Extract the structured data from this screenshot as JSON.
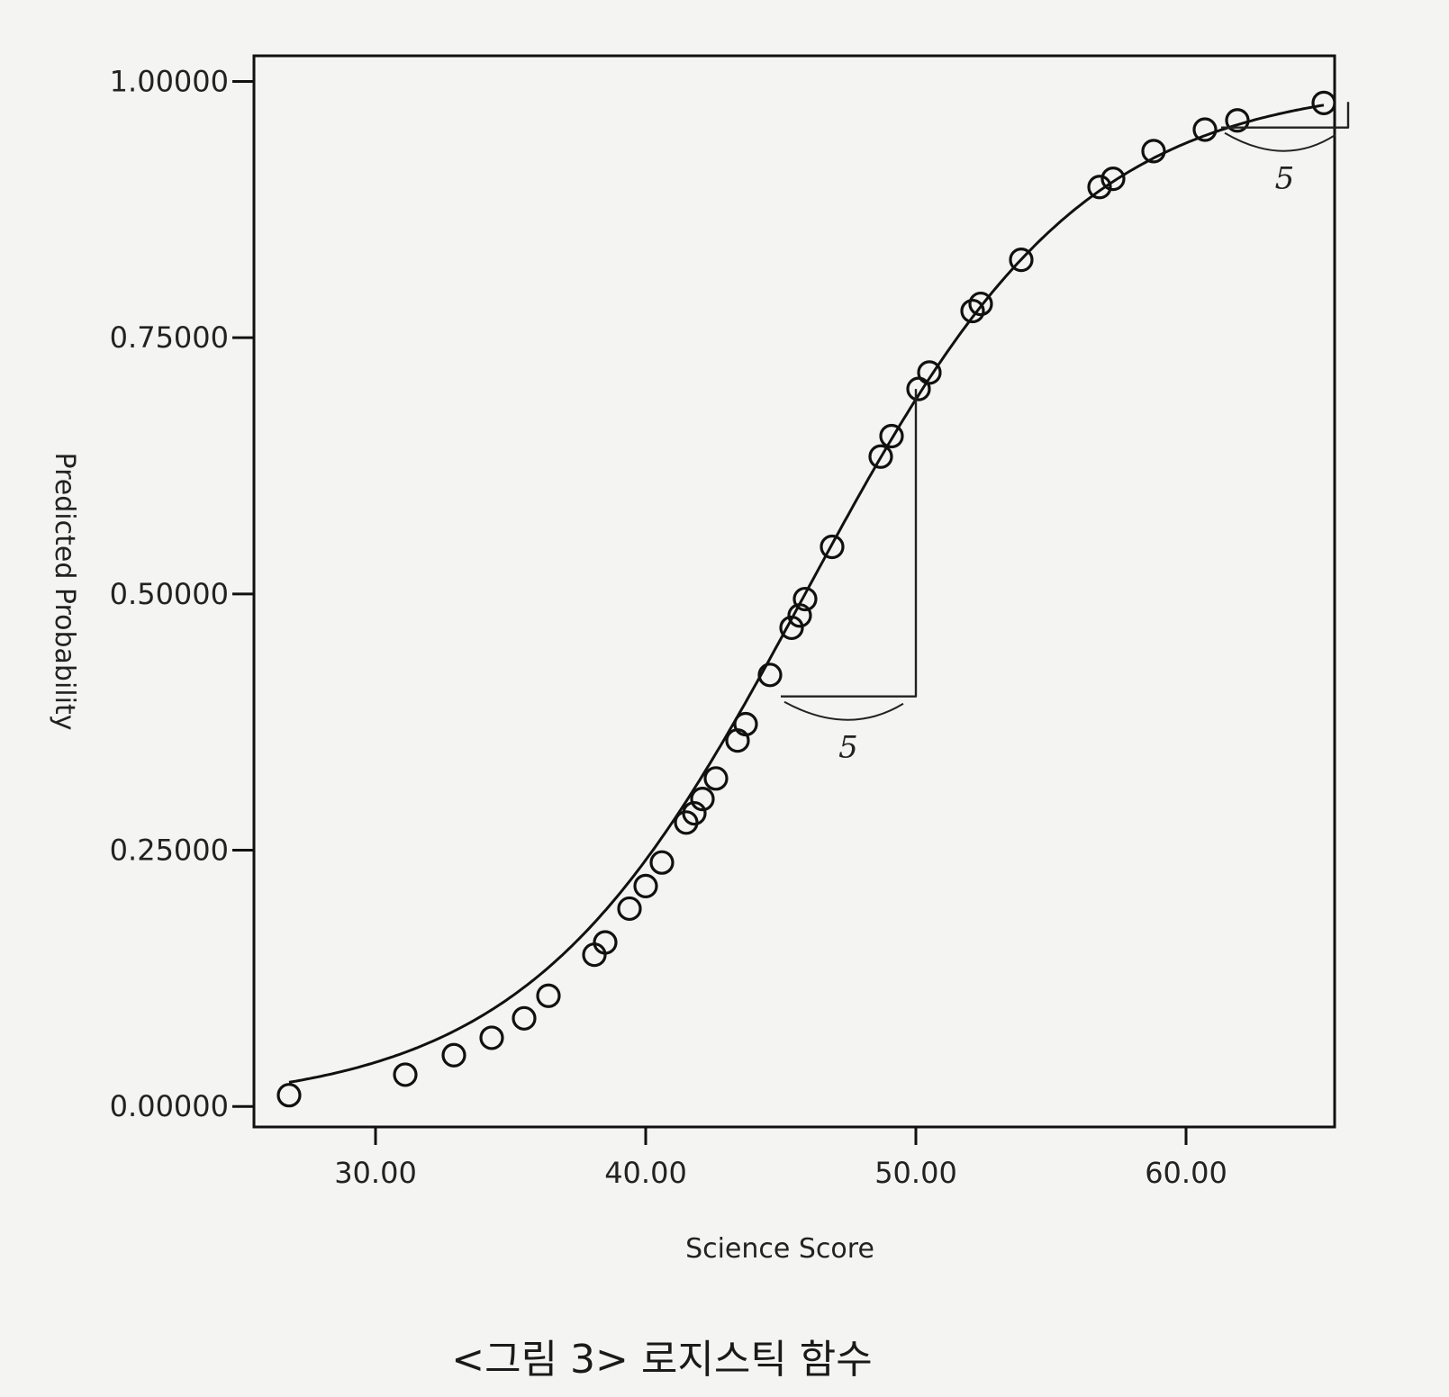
{
  "chart_data": {
    "type": "scatter",
    "xlabel": "Science Score",
    "ylabel": "Predicted Probability",
    "xlim": [
      25.5,
      65.5
    ],
    "ylim": [
      -0.02,
      1.025
    ],
    "x_ticks": [
      30,
      40,
      50,
      60
    ],
    "x_tick_labels": [
      "30.00",
      "40.00",
      "50.00",
      "60.00"
    ],
    "y_ticks": [
      0,
      0.25,
      0.5,
      0.75,
      1.0
    ],
    "y_tick_labels": [
      "0.00000",
      "0.25000",
      "0.50000",
      "0.75000",
      "1.00000"
    ],
    "grid": false,
    "curve": {
      "kind": "logistic",
      "midpoint": 45.9,
      "slope": 0.195
    },
    "series": [
      {
        "marker": "open-circle",
        "points": [
          {
            "x": 26.8,
            "y": 0.011
          },
          {
            "x": 31.1,
            "y": 0.031
          },
          {
            "x": 32.9,
            "y": 0.05
          },
          {
            "x": 34.3,
            "y": 0.067
          },
          {
            "x": 35.5,
            "y": 0.086
          },
          {
            "x": 36.4,
            "y": 0.108
          },
          {
            "x": 38.1,
            "y": 0.148
          },
          {
            "x": 38.5,
            "y": 0.16
          },
          {
            "x": 39.4,
            "y": 0.193
          },
          {
            "x": 40.0,
            "y": 0.215
          },
          {
            "x": 40.6,
            "y": 0.238
          },
          {
            "x": 41.5,
            "y": 0.277
          },
          {
            "x": 41.8,
            "y": 0.286
          },
          {
            "x": 42.1,
            "y": 0.3
          },
          {
            "x": 42.6,
            "y": 0.32
          },
          {
            "x": 43.4,
            "y": 0.357
          },
          {
            "x": 43.7,
            "y": 0.373
          },
          {
            "x": 44.6,
            "y": 0.421
          },
          {
            "x": 45.4,
            "y": 0.467
          },
          {
            "x": 45.7,
            "y": 0.479
          },
          {
            "x": 45.9,
            "y": 0.495
          },
          {
            "x": 46.9,
            "y": 0.546
          },
          {
            "x": 48.7,
            "y": 0.634
          },
          {
            "x": 49.1,
            "y": 0.654
          },
          {
            "x": 50.1,
            "y": 0.7
          },
          {
            "x": 50.5,
            "y": 0.716
          },
          {
            "x": 52.1,
            "y": 0.776
          },
          {
            "x": 52.4,
            "y": 0.783
          },
          {
            "x": 53.9,
            "y": 0.826
          },
          {
            "x": 56.8,
            "y": 0.897
          },
          {
            "x": 57.3,
            "y": 0.905
          },
          {
            "x": 58.8,
            "y": 0.932
          },
          {
            "x": 60.7,
            "y": 0.953
          },
          {
            "x": 61.9,
            "y": 0.962
          },
          {
            "x": 65.1,
            "y": 0.979
          }
        ]
      }
    ],
    "annotations": [
      {
        "type": "handwritten-triangle",
        "x_from": 45,
        "x_to": 50,
        "y_from": 0.4,
        "y_to": 0.7,
        "label": "5"
      },
      {
        "type": "handwritten-triangle",
        "x_from": 61.3,
        "x_to": 66.0,
        "y_from": 0.955,
        "y_to": 0.98,
        "label": "5"
      }
    ]
  },
  "caption": "<그림 3> 로지스틱 함수"
}
